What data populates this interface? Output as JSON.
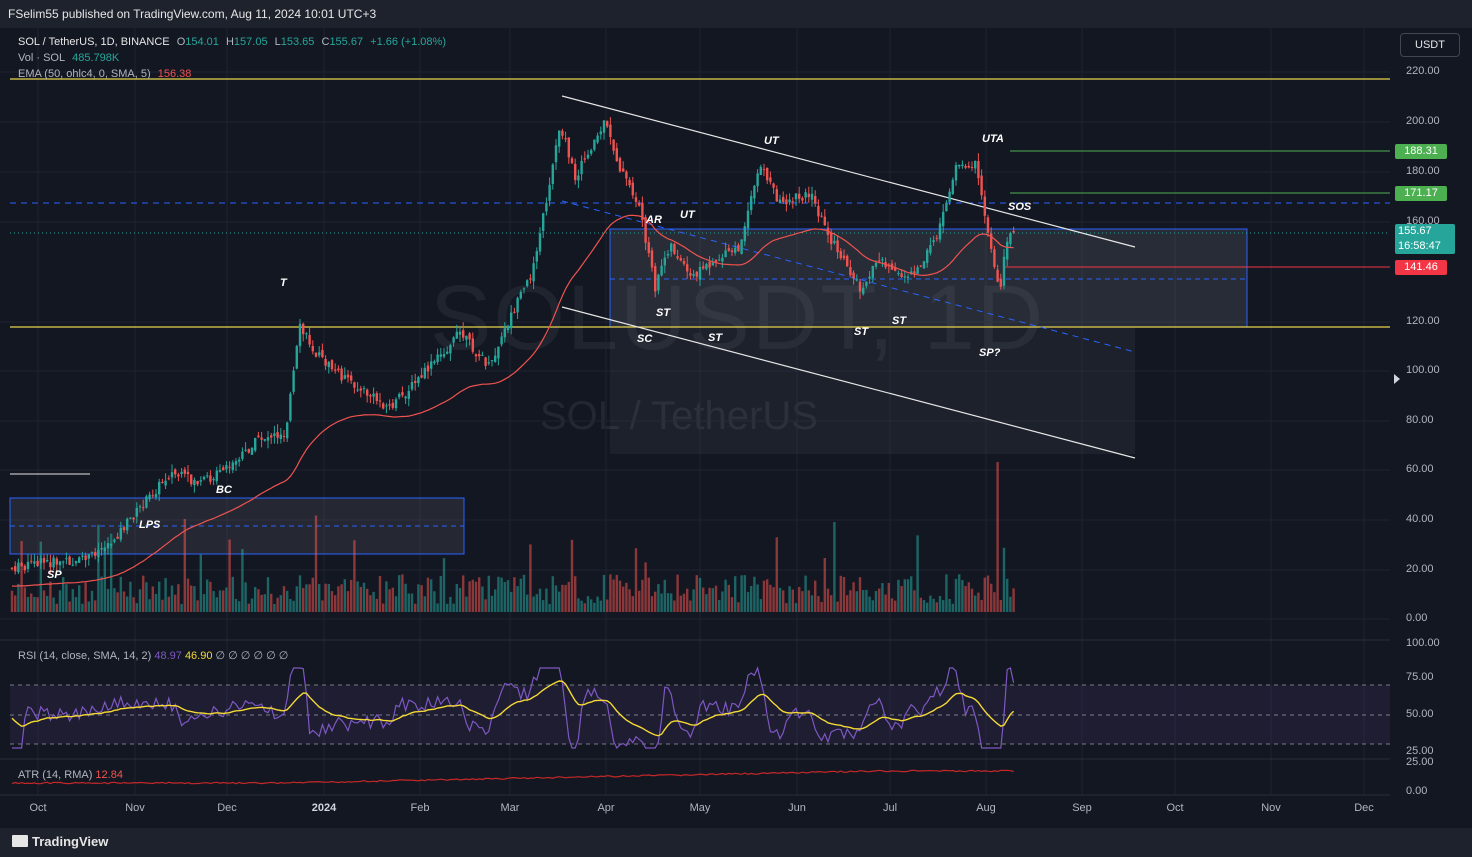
{
  "header": {
    "publisher": "FSelim55 published on TradingView.com, Aug 11, 2024 10:01 UTC+3"
  },
  "legend": {
    "symbol": "SOL / TetherUS, 1D, BINANCE",
    "open_label": "O",
    "open": "154.01",
    "high_label": "H",
    "high": "157.05",
    "low_label": "L",
    "low": "153.65",
    "close_label": "C",
    "close": "155.67",
    "change": "+1.66 (+1.08%)",
    "vol_label": "Vol · SOL",
    "vol_value": "485.798K",
    "ema_label": "EMA (50, ohlc4, 0, SMA, 5)",
    "ema_value": "156.38"
  },
  "currency_button": "USDT",
  "price_axis": [
    "220.00",
    "200.00",
    "180.00",
    "160.00",
    "120.00",
    "100.00",
    "80.00",
    "60.00",
    "40.00",
    "20.00",
    "0.00"
  ],
  "price_tags": {
    "resistance_1": "188.31",
    "resistance_2": "171.17",
    "last_price": "155.67",
    "countdown": "16:58:47",
    "support": "141.46"
  },
  "annotations": {
    "t": "T",
    "bc": "BC",
    "lps": "LPS",
    "sp": "SP",
    "sc": "SC",
    "ar": "AR",
    "ut1": "UT",
    "ut2": "UT",
    "st1": "ST",
    "st2": "ST",
    "st3": "ST",
    "st4": "ST",
    "uta": "UTA",
    "sos": "SOS",
    "sp2": "SP?"
  },
  "watermark": {
    "ticker": "SOLUSDT, 1D",
    "name": "SOL / TetherUS"
  },
  "rsi": {
    "label": "RSI (14, close, SMA, 14, 2)",
    "value1": "48.97",
    "value2": "46.90",
    "placeholders": "∅ ∅ ∅ ∅ ∅ ∅",
    "axis": [
      "100.00",
      "75.00",
      "50.00",
      "25.00"
    ]
  },
  "atr": {
    "label": "ATR (14, RMA)",
    "value": "12.84",
    "axis": [
      "25.00",
      "0.00"
    ]
  },
  "time_axis": [
    "Oct",
    "Nov",
    "Dec",
    "2024",
    "Feb",
    "Mar",
    "Apr",
    "May",
    "Jun",
    "Jul",
    "Aug",
    "Sep",
    "Oct",
    "Nov",
    "Dec"
  ],
  "footer": {
    "brand": "TradingView"
  },
  "colors": {
    "background": "#131722",
    "up": "#26a69a",
    "down": "#ef5350",
    "ema": "#ef5350",
    "rsi": "#7e57c2",
    "rsi_ma": "#f5d935",
    "support_line": "#e8d44d",
    "dashed_level": "#2962ff",
    "green_tag": "#4caf50",
    "red_tag": "#f23645"
  }
}
